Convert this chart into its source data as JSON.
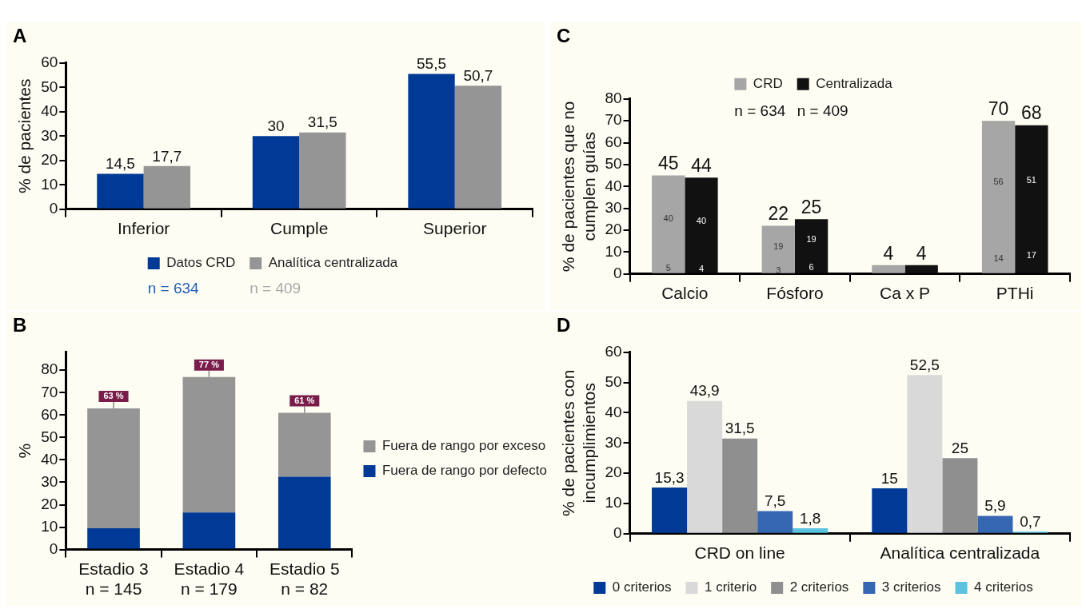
{
  "chart_data": [
    {
      "type": "bar",
      "title": "A",
      "ylabel": "% de pacientes",
      "categories": [
        "Inferior",
        "Cumple",
        "Superior"
      ],
      "series": [
        {
          "name": "Datos CRD",
          "color": "#003a96",
          "values": [
            14.5,
            30,
            55.5
          ],
          "value_labels": [
            "14,5",
            "30",
            "55,5"
          ]
        },
        {
          "name": "Analítica centralizada",
          "color": "#959595",
          "values": [
            17.7,
            31.5,
            50.7
          ],
          "value_labels": [
            "17,7",
            "31,5",
            "50,7"
          ]
        }
      ],
      "ylim": [
        0,
        60
      ],
      "yticks": [
        0,
        10,
        20,
        30,
        40,
        50,
        60
      ],
      "legend": "bottom",
      "annotations": [
        "n = 634",
        "n = 409"
      ]
    },
    {
      "type": "bar",
      "title": "B",
      "ylabel": "%",
      "categories": [
        "Estadio 3\nn = 145",
        "Estadio 4\nn = 179",
        "Estadio 5\nn = 82"
      ],
      "stacked": true,
      "series": [
        {
          "name": "Fuera de rango por defecto",
          "color": "#003a96",
          "values": [
            9.5,
            16.5,
            32.5
          ]
        },
        {
          "name": "Fuera de rango por exceso",
          "color": "#959595",
          "values": [
            53.5,
            60.5,
            28.5
          ]
        }
      ],
      "totals": [
        "63 %",
        "77 %",
        "61 %"
      ],
      "ylim": [
        0,
        88
      ],
      "yticks": [
        0,
        10,
        20,
        30,
        40,
        50,
        60,
        70,
        80
      ],
      "legend": "right"
    },
    {
      "type": "bar",
      "title": "C",
      "ylabel": "% de pacientes que no\ncumplen guías",
      "categories": [
        "Calcio",
        "Fósforo",
        "Ca x P",
        "PTHi"
      ],
      "series": [
        {
          "name": "CRD",
          "color": "#a6a6a6",
          "values": [
            45,
            22,
            4,
            70
          ]
        },
        {
          "name": "Centralizada",
          "color": "#111111",
          "values": [
            44,
            25,
            4,
            68
          ]
        }
      ],
      "data_labels": true,
      "ylim": [
        0,
        80
      ],
      "yticks": [
        0,
        10,
        20,
        30,
        40,
        50,
        60,
        70,
        80
      ],
      "legend": "top",
      "annotations": [
        "n = 634",
        "n = 409",
        {
          "text": "5",
          "x": "Calcio",
          "y": 2.5
        },
        {
          "text": "40",
          "x": "Calcio",
          "y": 25
        },
        {
          "text": "4",
          "x": "Calcio",
          "y": 2
        },
        {
          "text": "40",
          "x": "Calcio",
          "y": 24
        },
        {
          "text": "3",
          "x": "Fósforo",
          "y": 1.5
        },
        {
          "text": "19",
          "x": "Fósforo",
          "y": 12.5
        },
        {
          "text": "6",
          "x": "Fósforo",
          "y": 3
        },
        {
          "text": "19",
          "x": "Fósforo",
          "y": 15.5
        },
        {
          "text": "14",
          "x": "PTHi",
          "y": 7
        },
        {
          "text": "56",
          "x": "PTHi",
          "y": 42
        },
        {
          "text": "17",
          "x": "PTHi",
          "y": 8.5
        },
        {
          "text": "51",
          "x": "PTHi",
          "y": 42.5
        }
      ]
    },
    {
      "type": "bar",
      "title": "D",
      "ylabel": "% de pacientes con\nincumplimientos",
      "categories": [
        "CRD on line",
        "Analítica centralizada"
      ],
      "series": [
        {
          "name": "0 criterios",
          "color": "#003a96",
          "values": [
            15.3,
            15
          ],
          "value_labels": [
            "15,3",
            "15"
          ]
        },
        {
          "name": "1 criterio",
          "color": "#d9d9d9",
          "values": [
            43.9,
            52.5
          ],
          "value_labels": [
            "43,9",
            "52,5"
          ]
        },
        {
          "name": "2 criterios",
          "color": "#8f8f8f",
          "values": [
            31.5,
            25
          ],
          "value_labels": [
            "31,5",
            "25"
          ]
        },
        {
          "name": "3 criterios",
          "color": "#3566b2",
          "values": [
            7.5,
            5.9
          ],
          "value_labels": [
            "7,5",
            "5,9"
          ]
        },
        {
          "name": "4 criterios",
          "color": "#5bc2e0",
          "values": [
            1.8,
            0.7
          ],
          "value_labels": [
            "1,8",
            "0,7"
          ]
        }
      ],
      "ylim": [
        0,
        60
      ],
      "yticks": [
        0,
        10,
        20,
        30,
        40,
        50,
        60
      ],
      "legend": "bottom"
    }
  ]
}
